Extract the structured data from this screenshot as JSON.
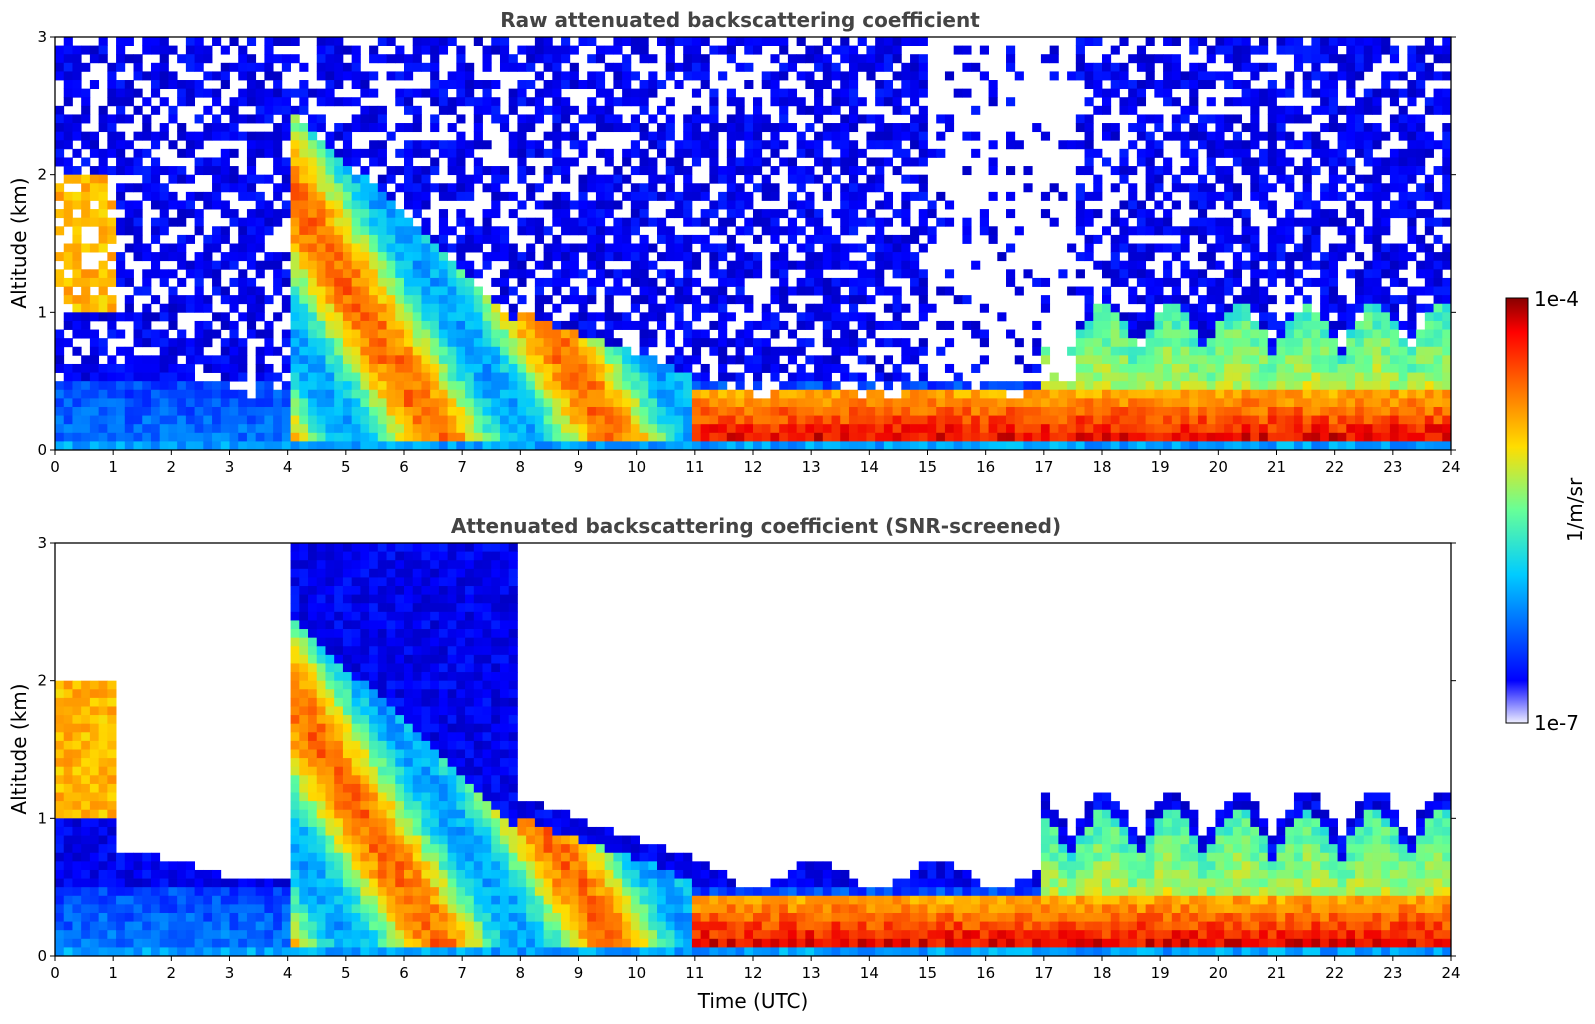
{
  "chart_data": [
    {
      "type": "heatmap",
      "title": "Raw attenuated backscattering coefficient",
      "xlabel": "",
      "ylabel": "Altitude (km)",
      "xlim": [
        0,
        24
      ],
      "ylim": [
        0,
        3
      ],
      "x_ticks": [
        "0",
        "1",
        "2",
        "3",
        "4",
        "5",
        "6",
        "7",
        "8",
        "9",
        "10",
        "11",
        "12",
        "13",
        "14",
        "15",
        "16",
        "17",
        "18",
        "19",
        "20",
        "21",
        "22",
        "23",
        "24"
      ],
      "y_ticks": [
        "0",
        "1",
        "2",
        "3"
      ],
      "screened": false
    },
    {
      "type": "heatmap",
      "title": "Attenuated backscattering coefficient (SNR-screened)",
      "xlabel": "Time (UTC)",
      "ylabel": "Altitude (km)",
      "xlim": [
        0,
        24
      ],
      "ylim": [
        0,
        3
      ],
      "x_ticks": [
        "0",
        "1",
        "2",
        "3",
        "4",
        "5",
        "6",
        "7",
        "8",
        "9",
        "10",
        "11",
        "12",
        "13",
        "14",
        "15",
        "16",
        "17",
        "18",
        "19",
        "20",
        "21",
        "22",
        "23",
        "24"
      ],
      "y_ticks": [
        "0",
        "1",
        "2",
        "3"
      ],
      "screened": true
    }
  ],
  "colorbar": {
    "label": "1/m/sr",
    "max_label": "1e-4",
    "min_label": "1e-7",
    "colormap": "jet",
    "scale": "log"
  }
}
